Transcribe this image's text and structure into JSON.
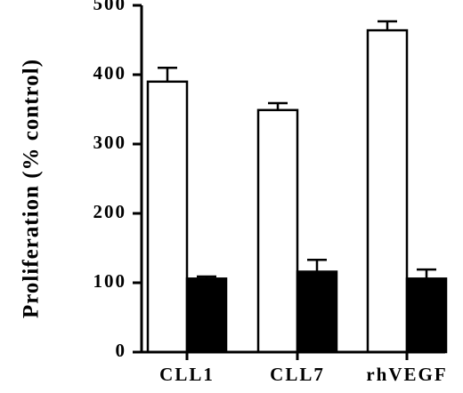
{
  "chart_data": {
    "type": "bar",
    "categories": [
      "CLL1",
      "CLL7",
      "rhVEGF"
    ],
    "series": [
      {
        "values": [
          390,
          349,
          464
        ],
        "errors": [
          20,
          10,
          13
        ],
        "color": "#ffffff"
      },
      {
        "values": [
          106,
          116,
          106
        ],
        "errors": [
          3,
          17,
          13
        ],
        "color": "#000000"
      }
    ],
    "xlabel": "",
    "ylabel": "Proliferation (% control)",
    "ylim": [
      0,
      500
    ],
    "yticks": [
      "0",
      "100",
      "200",
      "300",
      "400",
      "500"
    ],
    "grid": false,
    "legend": "none"
  }
}
